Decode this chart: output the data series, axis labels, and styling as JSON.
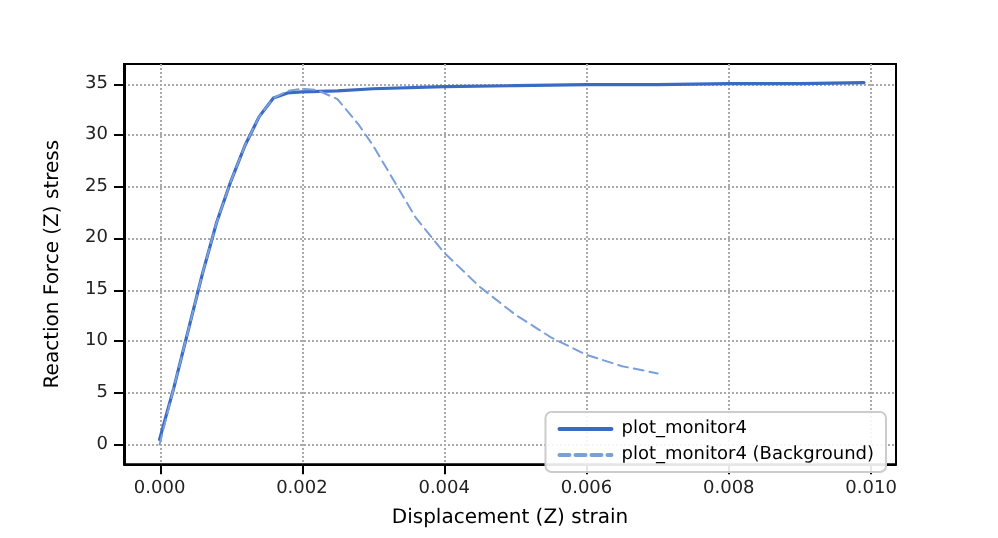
{
  "chart_data": {
    "type": "line",
    "xlabel": "Displacement (Z) strain",
    "ylabel": "Reaction Force (Z) stress",
    "xlim": [
      -0.0005,
      0.01035
    ],
    "ylim": [
      -1.9,
      36.9
    ],
    "xticks": [
      {
        "value": 0,
        "label": "0.000"
      },
      {
        "value": 0.002,
        "label": "0.002"
      },
      {
        "value": 0.004,
        "label": "0.004"
      },
      {
        "value": 0.006,
        "label": "0.006"
      },
      {
        "value": 0.008,
        "label": "0.008"
      },
      {
        "value": 0.01,
        "label": "0.010"
      }
    ],
    "yticks": [
      0,
      5,
      10,
      15,
      20,
      25,
      30,
      35
    ],
    "grid": true,
    "legend": "bottom right",
    "marker": "none",
    "series": [
      {
        "name": "plot_monitor4",
        "color": "#3a6bc4",
        "line_style": "solid",
        "x": [
          0,
          0.0002,
          0.0004,
          0.0006,
          0.0008,
          0.001,
          0.0012,
          0.0014,
          0.0016,
          0.0018,
          0.002,
          0.0025,
          0.003,
          0.004,
          0.005,
          0.006,
          0.007,
          0.008,
          0.009,
          0.0099
        ],
        "values": [
          0.5,
          5.5,
          11,
          16.5,
          21.5,
          25.5,
          29,
          31.8,
          33.6,
          34.1,
          34.2,
          34.3,
          34.5,
          34.7,
          34.8,
          34.9,
          34.9,
          35,
          35,
          35.1
        ]
      },
      {
        "name": "plot_monitor4 (Background)",
        "color": "#7a9fd9",
        "line_style": "dashed",
        "x": [
          0,
          0.0002,
          0.0004,
          0.0006,
          0.0008,
          0.001,
          0.0012,
          0.0014,
          0.0016,
          0.0018,
          0.002,
          0.0022,
          0.0025,
          0.0028,
          0.003,
          0.0033,
          0.0036,
          0.004,
          0.0045,
          0.005,
          0.0055,
          0.006,
          0.0065,
          0.007
        ],
        "values": [
          0,
          5.5,
          11,
          16.5,
          21.5,
          25.5,
          29,
          31.8,
          33.6,
          34.3,
          34.5,
          34.4,
          33.5,
          31,
          29,
          25.5,
          22,
          18.6,
          15.3,
          12.6,
          10.4,
          8.7,
          7.6,
          6.9
        ]
      }
    ]
  }
}
